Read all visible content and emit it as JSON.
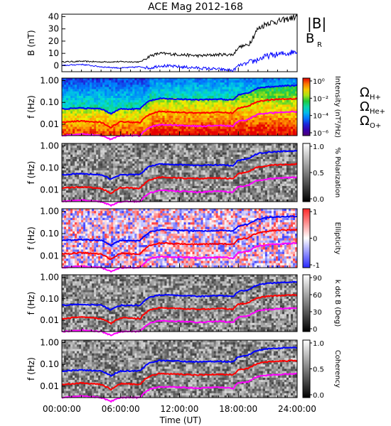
{
  "chart_data": {
    "title": "ACE Mag 2012-168",
    "type": "multi-panel spectrogram",
    "x_axis": {
      "label": "Time (UT)",
      "range_hours": [
        0,
        24
      ],
      "ticks": [
        "00:00:00",
        "06:00:00",
        "12:00:00",
        "18:00:00",
        "24:00:00"
      ]
    },
    "panels": [
      {
        "type": "line",
        "ylabel": "B (nT)",
        "ylim": [
          -5,
          42
        ],
        "yticks": [
          0,
          10,
          20,
          30,
          40
        ],
        "series": [
          {
            "name": "|B|",
            "color": "#000000",
            "x": [
              0,
              2,
              4,
              6,
              8,
              9,
              10,
              12,
              14,
              16,
              17.5,
              18,
              19,
              20,
              21,
              22,
              23,
              24
            ],
            "y": [
              3,
              3.5,
              3,
              3.2,
              3,
              8,
              10,
              9,
              8,
              9,
              9,
              15,
              17,
              30,
              35,
              36,
              38,
              40
            ]
          },
          {
            "name": "B_R",
            "color": "#0000ff",
            "x": [
              0,
              2,
              4,
              6,
              8,
              9,
              10,
              12,
              14,
              16,
              17.5,
              18,
              19,
              20,
              21,
              22,
              23,
              24
            ],
            "y": [
              0,
              1,
              -1,
              -2,
              -1,
              -2,
              0,
              -1,
              -2,
              -3,
              -4,
              0,
              2,
              5,
              8,
              9,
              10,
              12
            ]
          }
        ]
      },
      {
        "type": "heatmap",
        "ylabel": "f (Hz)",
        "yscale": "log",
        "yticks": [
          "1.00",
          "0.10",
          "0.01"
        ],
        "colorbar": {
          "label": "Intensity (nT²/Hz)",
          "ticks": [
            "10⁰",
            "10⁻²",
            "10⁻⁴",
            "10⁻⁶"
          ],
          "palette": "rainbow"
        }
      },
      {
        "type": "heatmap",
        "ylabel": "f (Hz)",
        "yscale": "log",
        "yticks": [
          "1.00",
          "0.10",
          "0.01"
        ],
        "colorbar": {
          "label": "% Polarization",
          "ticks": [
            "1.0",
            "0.5",
            "0.0"
          ],
          "palette": "grayscale"
        }
      },
      {
        "type": "heatmap",
        "ylabel": "f (Hz)",
        "yscale": "log",
        "yticks": [
          "1.00",
          "0.10",
          "0.01"
        ],
        "colorbar": {
          "label": "Ellipticity",
          "ticks": [
            "1",
            "0",
            "-1"
          ],
          "palette": "blue-white-red"
        }
      },
      {
        "type": "heatmap",
        "ylabel": "f (Hz)",
        "yscale": "log",
        "yticks": [
          "1.00",
          "0.10",
          "0.01"
        ],
        "colorbar": {
          "label": "k dot B (Deg)",
          "ticks": [
            "90",
            "60",
            "30",
            "0"
          ],
          "palette": "grayscale"
        }
      },
      {
        "type": "heatmap",
        "ylabel": "f (Hz)",
        "yscale": "log",
        "yticks": [
          "1.00",
          "0.10",
          "0.01"
        ],
        "colorbar": {
          "label": "Coherency",
          "ticks": [
            "1.0",
            "0.5",
            "0.0"
          ],
          "palette": "grayscale"
        }
      }
    ],
    "gyrofrequency_legend": [
      {
        "label": "Ω",
        "sub": "H+",
        "color": "#0000ff"
      },
      {
        "label": "Ω",
        "sub": "He+",
        "color": "#ff0000"
      },
      {
        "label": "Ω",
        "sub": "O+",
        "color": "#ff00ff"
      }
    ],
    "gyrofrequency_traces": {
      "x": [
        0,
        2,
        4,
        5,
        6,
        8,
        9,
        10,
        12,
        14,
        16,
        17.5,
        18,
        19,
        20,
        21,
        22,
        23,
        24
      ],
      "H+": [
        0.05,
        0.055,
        0.05,
        0.03,
        0.05,
        0.05,
        0.12,
        0.15,
        0.14,
        0.13,
        0.14,
        0.13,
        0.22,
        0.26,
        0.45,
        0.52,
        0.55,
        0.58,
        0.6
      ],
      "He+": [
        0.012,
        0.014,
        0.012,
        0.007,
        0.013,
        0.012,
        0.03,
        0.038,
        0.035,
        0.033,
        0.035,
        0.033,
        0.055,
        0.065,
        0.11,
        0.13,
        0.14,
        0.145,
        0.15
      ],
      "O+": [
        0.003,
        0.0035,
        0.003,
        0.002,
        0.003,
        0.003,
        0.0075,
        0.0095,
        0.009,
        0.008,
        0.009,
        0.008,
        0.014,
        0.016,
        0.028,
        0.032,
        0.034,
        0.036,
        0.038
      ]
    },
    "line_legend": [
      {
        "label": "|B|",
        "color": "#000000"
      },
      {
        "label": "B",
        "sub": "R",
        "color": "#0000ff"
      }
    ]
  }
}
